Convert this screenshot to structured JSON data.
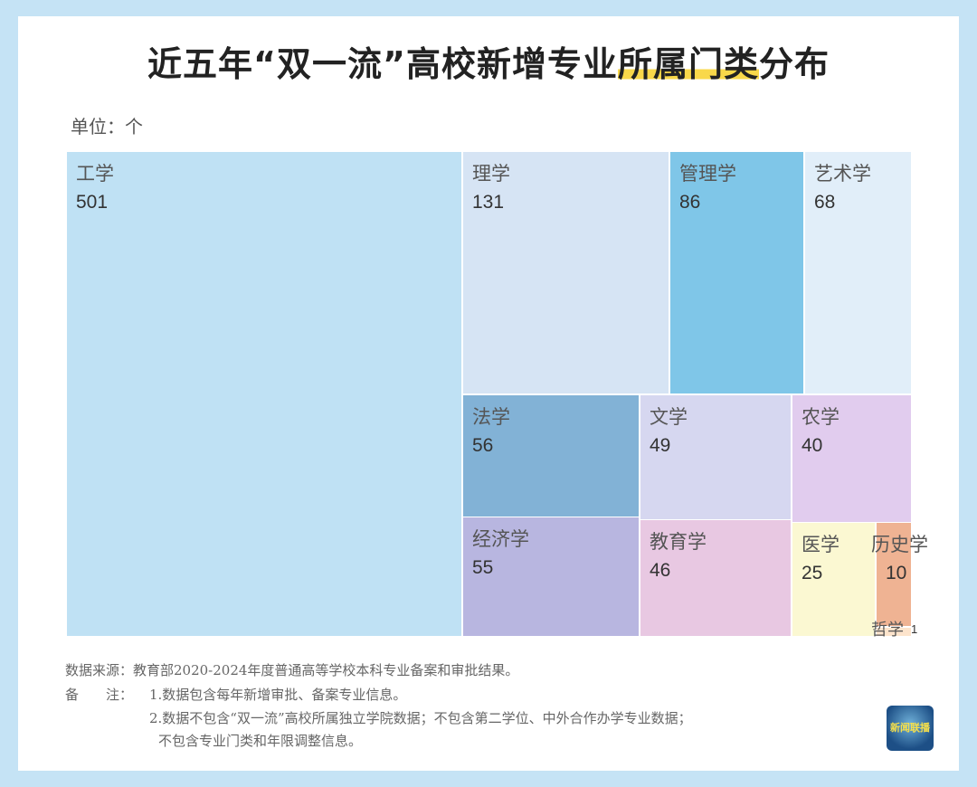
{
  "title_pre": "近五年“双一流”高校新增专业",
  "title_highlight": "所属门类",
  "title_post": "分布",
  "unit": "单位：个",
  "chart_data": {
    "type": "treemap",
    "categories": [
      "工学",
      "理学",
      "管理学",
      "艺术学",
      "法学",
      "经济学",
      "文学",
      "教育学",
      "农学",
      "医学",
      "历史学",
      "哲学"
    ],
    "values": [
      501,
      131,
      86,
      68,
      56,
      55,
      49,
      46,
      40,
      25,
      10,
      1
    ],
    "colors": [
      "#bfe1f4",
      "#d6e4f4",
      "#7fc6e8",
      "#e1eef9",
      "#82b2d6",
      "#b8b6e0",
      "#d6d7f0",
      "#e8c8e2",
      "#e1ccee",
      "#fbf8d2",
      "#efb393",
      "#fde4cc"
    ]
  },
  "notes": {
    "source": "数据来源：教育部2020-2024年度普通高等学校本科专业备案和审批结果。",
    "remark_label": "备　　注：",
    "note1": "1.数据包含每年新增审批、备案专业信息。",
    "note2": "2.数据不包含“双一流”高校所属独立学院数据；不包含第二学位、中外合作办学专业数据；",
    "note3": "不包含专业门类和年限调整信息。"
  },
  "logo_text": "新闻联播"
}
